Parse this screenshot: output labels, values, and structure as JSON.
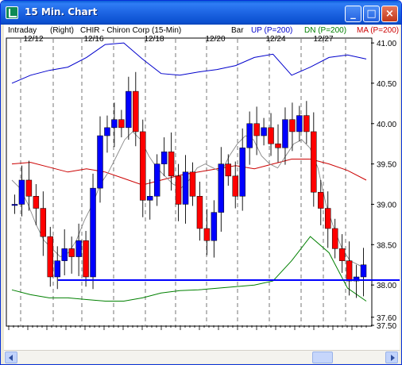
{
  "window": {
    "title": "15 Min. Chart",
    "minimize": "_",
    "maximize": "□",
    "close": "×"
  },
  "header": {
    "mode": "Intraday",
    "axis_side": "(Right)",
    "description": "CHIR - Chiron Corp  (15-Min)",
    "chart_style": "Bar",
    "band_up": "UP (P=200)",
    "band_dn": "DN (P=200)",
    "band_ma": "MA (P=200)",
    "colors": {
      "up": "#0000cc",
      "dn": "#008000",
      "ma": "#cc0000",
      "candle_up": "#0000ff",
      "candle_down": "#ff0000",
      "hline": "#0000ff"
    }
  },
  "chart_data": {
    "type": "candlestick",
    "title": "CHIR - Chiron Corp (15-Min)",
    "x_ticks": [
      "12/12",
      "12/16",
      "12/18",
      "12/20",
      "12/24",
      "12/27"
    ],
    "y_ticks": [
      "41.00",
      "40.50",
      "40.00",
      "39.50",
      "39.00",
      "38.50",
      "38.00",
      "37.60",
      "37.50"
    ],
    "ylim": [
      37.5,
      41.05
    ],
    "hline": 38.06,
    "series": [
      {
        "name": "UP (P=200)",
        "values": [
          40.5,
          40.6,
          40.66,
          40.7,
          40.82,
          40.98,
          41.0,
          40.8,
          40.62,
          40.6,
          40.64,
          40.67,
          40.72,
          40.82,
          40.86,
          40.6,
          40.7,
          40.82,
          40.85,
          40.8
        ]
      },
      {
        "name": "DN (P=200)",
        "values": [
          37.94,
          37.88,
          37.84,
          37.84,
          37.82,
          37.8,
          37.8,
          37.84,
          37.9,
          37.93,
          37.94,
          37.96,
          37.98,
          38.0,
          38.05,
          38.3,
          38.6,
          38.4,
          37.96,
          37.8
        ]
      },
      {
        "name": "MA (P=200)",
        "values": [
          39.5,
          39.52,
          39.46,
          39.4,
          39.44,
          39.4,
          39.32,
          39.24,
          39.3,
          39.36,
          39.4,
          39.44,
          39.48,
          39.44,
          39.5,
          39.56,
          39.56,
          39.5,
          39.42,
          39.3
        ]
      }
    ],
    "close": [
      39.0,
      39.3,
      39.1,
      38.95,
      38.6,
      38.1,
      38.3,
      38.45,
      38.35,
      38.55,
      38.1,
      39.2,
      39.85,
      39.95,
      40.05,
      39.95,
      40.4,
      39.9,
      39.05,
      39.1,
      39.5,
      39.65,
      39.35,
      39.0,
      39.4,
      39.1,
      38.7,
      38.55,
      38.9,
      39.5,
      39.35,
      39.1,
      39.7,
      40.0,
      39.85,
      39.95,
      39.75,
      39.7,
      40.05,
      39.9,
      40.1,
      39.9,
      39.15,
      38.95,
      38.7,
      38.45,
      38.3,
      38.05,
      38.1,
      38.25
    ],
    "moving_average": [
      39.3,
      39.2,
      39.0,
      38.75,
      38.55,
      38.45,
      38.35,
      38.4,
      38.55,
      38.8,
      39.0,
      39.25,
      39.4,
      39.6,
      39.8,
      39.9,
      39.8,
      39.6,
      39.45,
      39.35,
      39.25,
      39.2,
      39.3,
      39.45,
      39.5,
      39.45,
      39.4,
      39.6,
      39.75,
      39.85,
      39.8,
      39.6,
      39.5,
      39.45,
      39.6,
      39.75,
      39.8,
      39.7,
      39.45,
      39.0,
      38.7,
      38.45,
      38.3,
      38.25,
      38.2
    ]
  },
  "scrollbar": {
    "left_arrow": "left-arrow",
    "right_arrow": "right-arrow"
  }
}
